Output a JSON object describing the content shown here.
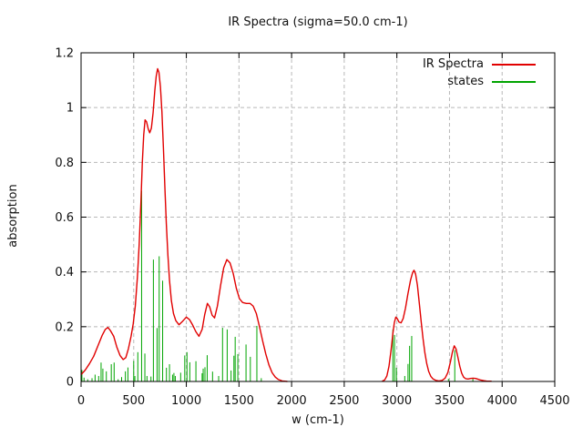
{
  "chart_data": {
    "type": "line",
    "title": "IR Spectra (sigma=50.0 cm-1)",
    "xlabel": "w (cm-1)",
    "ylabel": "absorption",
    "xlim": [
      0,
      4500
    ],
    "ylim": [
      0,
      1.2
    ],
    "xtick_labels": [
      "0",
      "500",
      "1000",
      "1500",
      "2000",
      "2500",
      "3000",
      "3500",
      "4000",
      "4500"
    ],
    "ytick_labels": [
      "0",
      "0.2",
      "0.4",
      "0.6",
      "0.8",
      "1",
      "1.2"
    ],
    "grid": true,
    "legend_position": "top-right-inside",
    "colors": {
      "spectra": "#e10000",
      "states": "#00a400",
      "grid": "#b8b8b8",
      "axis": "#000000"
    },
    "series": [
      {
        "name": "IR Spectra",
        "type": "line",
        "color": "#e10000",
        "segments": [
          [
            [
              0,
              0.025
            ],
            [
              40,
              0.042
            ],
            [
              80,
              0.065
            ],
            [
              120,
              0.092
            ],
            [
              160,
              0.13
            ],
            [
              200,
              0.168
            ],
            [
              230,
              0.19
            ],
            [
              255,
              0.197
            ],
            [
              280,
              0.185
            ],
            [
              310,
              0.165
            ],
            [
              340,
              0.125
            ],
            [
              370,
              0.095
            ],
            [
              400,
              0.08
            ],
            [
              425,
              0.087
            ],
            [
              450,
              0.12
            ],
            [
              475,
              0.165
            ],
            [
              495,
              0.21
            ],
            [
              515,
              0.275
            ],
            [
              535,
              0.38
            ],
            [
              552,
              0.5
            ],
            [
              568,
              0.65
            ],
            [
              582,
              0.8
            ],
            [
              595,
              0.9
            ],
            [
              608,
              0.955
            ],
            [
              622,
              0.948
            ],
            [
              638,
              0.922
            ],
            [
              652,
              0.908
            ],
            [
              668,
              0.925
            ],
            [
              684,
              0.98
            ],
            [
              700,
              1.06
            ],
            [
              714,
              1.115
            ],
            [
              727,
              1.142
            ],
            [
              740,
              1.128
            ],
            [
              754,
              1.075
            ],
            [
              768,
              0.985
            ],
            [
              782,
              0.855
            ],
            [
              796,
              0.71
            ],
            [
              810,
              0.575
            ],
            [
              825,
              0.46
            ],
            [
              840,
              0.37
            ],
            [
              858,
              0.295
            ],
            [
              878,
              0.248
            ],
            [
              900,
              0.222
            ],
            [
              930,
              0.207
            ],
            [
              960,
              0.218
            ],
            [
              1000,
              0.235
            ],
            [
              1030,
              0.226
            ],
            [
              1060,
              0.206
            ],
            [
              1090,
              0.182
            ],
            [
              1120,
              0.165
            ],
            [
              1150,
              0.19
            ],
            [
              1175,
              0.245
            ],
            [
              1200,
              0.285
            ],
            [
              1222,
              0.272
            ],
            [
              1245,
              0.242
            ],
            [
              1268,
              0.232
            ],
            [
              1295,
              0.275
            ],
            [
              1325,
              0.35
            ],
            [
              1355,
              0.415
            ],
            [
              1385,
              0.445
            ],
            [
              1415,
              0.433
            ],
            [
              1445,
              0.395
            ],
            [
              1475,
              0.34
            ],
            [
              1505,
              0.302
            ],
            [
              1535,
              0.288
            ],
            [
              1570,
              0.285
            ],
            [
              1605,
              0.285
            ],
            [
              1635,
              0.275
            ],
            [
              1665,
              0.248
            ],
            [
              1695,
              0.2
            ],
            [
              1725,
              0.148
            ],
            [
              1755,
              0.1
            ],
            [
              1785,
              0.06
            ],
            [
              1815,
              0.032
            ],
            [
              1845,
              0.016
            ],
            [
              1875,
              0.007
            ],
            [
              1910,
              0.002
            ],
            [
              1960,
              0.0
            ]
          ],
          [
            [
              2860,
              0.001
            ],
            [
              2885,
              0.006
            ],
            [
              2905,
              0.02
            ],
            [
              2925,
              0.055
            ],
            [
              2945,
              0.115
            ],
            [
              2962,
              0.175
            ],
            [
              2976,
              0.215
            ],
            [
              2990,
              0.235
            ],
            [
              3004,
              0.229
            ],
            [
              3020,
              0.217
            ],
            [
              3040,
              0.214
            ],
            [
              3060,
              0.23
            ],
            [
              3082,
              0.268
            ],
            [
              3105,
              0.32
            ],
            [
              3130,
              0.37
            ],
            [
              3150,
              0.398
            ],
            [
              3163,
              0.406
            ],
            [
              3178,
              0.392
            ],
            [
              3195,
              0.352
            ],
            [
              3212,
              0.29
            ],
            [
              3230,
              0.222
            ],
            [
              3248,
              0.158
            ],
            [
              3266,
              0.105
            ],
            [
              3284,
              0.065
            ],
            [
              3302,
              0.037
            ],
            [
              3322,
              0.019
            ],
            [
              3344,
              0.009
            ],
            [
              3370,
              0.004
            ],
            [
              3400,
              0.002
            ],
            [
              3430,
              0.004
            ],
            [
              3458,
              0.012
            ],
            [
              3484,
              0.032
            ],
            [
              3508,
              0.07
            ],
            [
              3528,
              0.108
            ],
            [
              3545,
              0.13
            ],
            [
              3562,
              0.119
            ],
            [
              3580,
              0.088
            ],
            [
              3598,
              0.055
            ],
            [
              3616,
              0.03
            ],
            [
              3634,
              0.016
            ],
            [
              3654,
              0.01
            ],
            [
              3676,
              0.009
            ],
            [
              3700,
              0.011
            ],
            [
              3724,
              0.012
            ],
            [
              3748,
              0.011
            ],
            [
              3772,
              0.008
            ],
            [
              3796,
              0.005
            ],
            [
              3824,
              0.003
            ],
            [
              3856,
              0.001
            ],
            [
              3900,
              0.001
            ]
          ]
        ]
      },
      {
        "name": "states",
        "type": "sticks",
        "color": "#00a400",
        "points": [
          [
            8,
            0.042
          ],
          [
            28,
            0.014
          ],
          [
            63,
            0.008
          ],
          [
            104,
            0.012
          ],
          [
            133,
            0.025
          ],
          [
            167,
            0.02
          ],
          [
            190,
            0.069
          ],
          [
            207,
            0.047
          ],
          [
            240,
            0.037
          ],
          [
            287,
            0.063
          ],
          [
            314,
            0.069
          ],
          [
            352,
            0.008
          ],
          [
            385,
            0.016
          ],
          [
            421,
            0.037
          ],
          [
            445,
            0.051
          ],
          [
            500,
            0.075
          ],
          [
            511,
            0.02
          ],
          [
            539,
            0.107
          ],
          [
            575,
            0.697
          ],
          [
            606,
            0.102
          ],
          [
            626,
            0.02
          ],
          [
            664,
            0.018
          ],
          [
            687,
            0.445
          ],
          [
            722,
            0.195
          ],
          [
            742,
            0.457
          ],
          [
            775,
            0.368
          ],
          [
            811,
            0.05
          ],
          [
            840,
            0.063
          ],
          [
            869,
            0.025
          ],
          [
            882,
            0.031
          ],
          [
            895,
            0.02
          ],
          [
            946,
            0.032
          ],
          [
            985,
            0.095
          ],
          [
            1006,
            0.107
          ],
          [
            1033,
            0.07
          ],
          [
            1091,
            0.074
          ],
          [
            1150,
            0.03
          ],
          [
            1160,
            0.047
          ],
          [
            1177,
            0.052
          ],
          [
            1198,
            0.096
          ],
          [
            1249,
            0.036
          ],
          [
            1307,
            0.02
          ],
          [
            1344,
            0.196
          ],
          [
            1388,
            0.19
          ],
          [
            1425,
            0.04
          ],
          [
            1452,
            0.094
          ],
          [
            1464,
            0.163
          ],
          [
            1489,
            0.1
          ],
          [
            1567,
            0.135
          ],
          [
            1608,
            0.09
          ],
          [
            1670,
            0.203
          ],
          [
            1712,
            0.012
          ],
          [
            2962,
            0.19
          ],
          [
            2978,
            0.17
          ],
          [
            2996,
            0.05
          ],
          [
            3075,
            0.02
          ],
          [
            3106,
            0.064
          ],
          [
            3121,
            0.13
          ],
          [
            3141,
            0.166
          ],
          [
            3490,
            0.01
          ],
          [
            3550,
            0.115
          ],
          [
            3722,
            0.012
          ]
        ]
      }
    ]
  }
}
